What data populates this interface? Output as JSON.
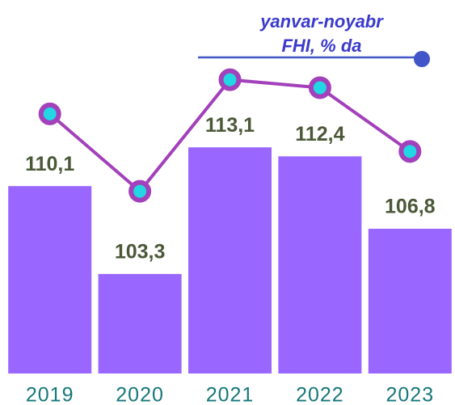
{
  "chart_data": {
    "type": "bar",
    "title": "yanvar-noyabr",
    "subtitle": "FHI, % da",
    "categories": [
      "2019",
      "2020",
      "2021",
      "2022",
      "2023"
    ],
    "values": [
      110.1,
      103.3,
      113.1,
      112.4,
      106.8
    ],
    "value_labels": [
      "110,1",
      "103,3",
      "113,1",
      "112,4",
      "106,8"
    ],
    "color": "#9966ff",
    "ylim": [
      95.6,
      124.5
    ],
    "line": {
      "color": "#a340bb",
      "marker_color": "#22d6e4",
      "legend_color": "#4055c8",
      "y2lim": [
        87.3,
        120.1
      ]
    }
  }
}
